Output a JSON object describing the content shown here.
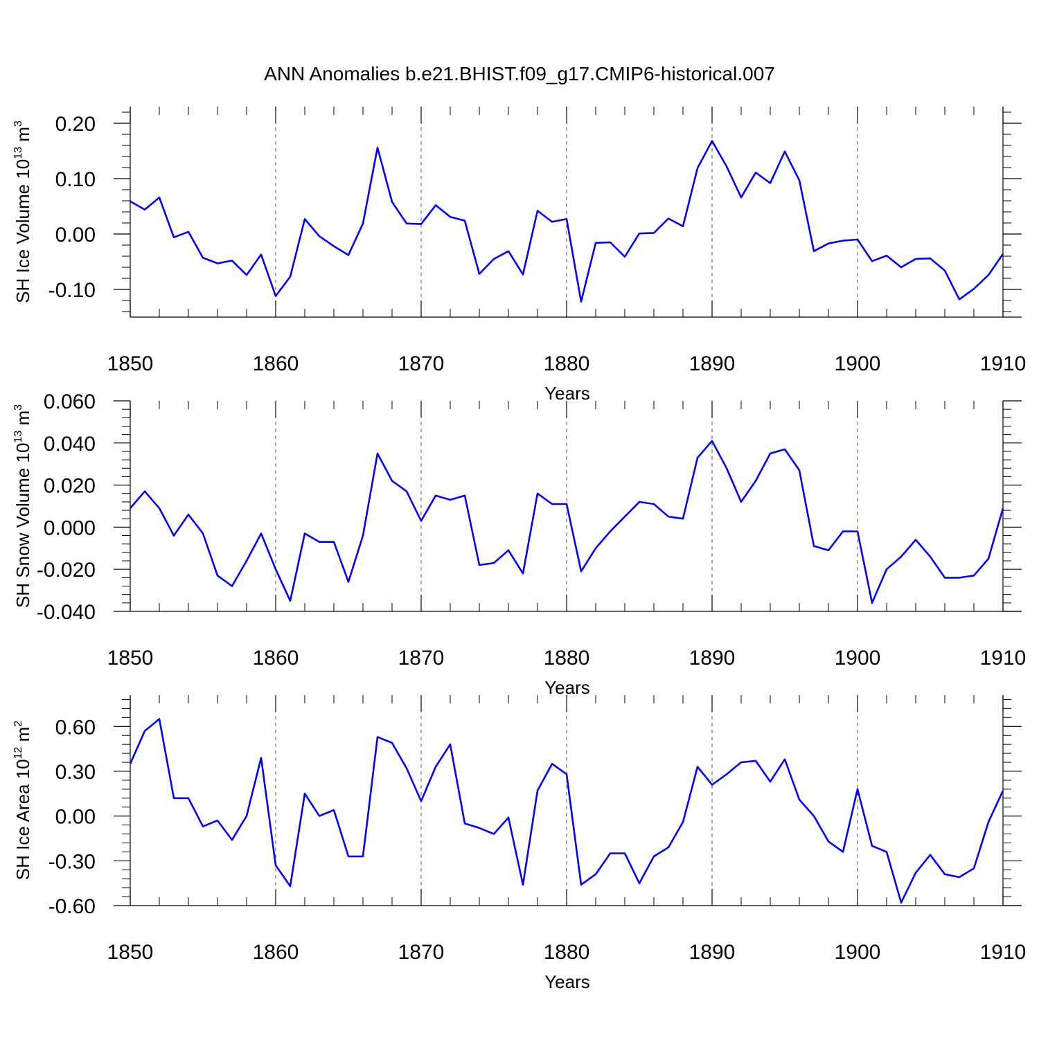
{
  "title": "ANN Anomalies b.e21.BHIST.f09_g17.CMIP6-historical.007",
  "line_color": "#0000ff",
  "chart_data": [
    {
      "type": "line",
      "name": "ice-volume-panel",
      "xlabel": "Years",
      "ylabel_main": "SH Ice Volume 10",
      "ylabel_exp": "13",
      "ylabel_unit": " m",
      "ylabel_unit_exp": "3",
      "xlim": [
        1850,
        1910
      ],
      "ylim": [
        -0.15,
        0.23
      ],
      "xticks": [
        "1850",
        "1860",
        "1870",
        "1880",
        "1890",
        "1900",
        "1910"
      ],
      "yticks": [
        {
          "v": -0.1,
          "label": "-0.10"
        },
        {
          "v": 0.0,
          "label": "0.00"
        },
        {
          "v": 0.1,
          "label": "0.10"
        },
        {
          "v": 0.2,
          "label": "0.20"
        }
      ],
      "x": [
        1850,
        1851,
        1852,
        1853,
        1854,
        1855,
        1856,
        1857,
        1858,
        1859,
        1860,
        1861,
        1862,
        1863,
        1864,
        1865,
        1866,
        1867,
        1868,
        1869,
        1870,
        1871,
        1872,
        1873,
        1874,
        1875,
        1876,
        1877,
        1878,
        1879,
        1880,
        1881,
        1882,
        1883,
        1884,
        1885,
        1886,
        1887,
        1888,
        1889,
        1890,
        1891,
        1892,
        1893,
        1894,
        1895,
        1896,
        1897,
        1898,
        1899,
        1900,
        1901,
        1902,
        1903,
        1904,
        1905,
        1906,
        1907,
        1908,
        1909,
        1910
      ],
      "values": [
        0.059,
        0.044,
        0.066,
        -0.006,
        0.004,
        -0.043,
        -0.053,
        -0.048,
        -0.074,
        -0.037,
        -0.112,
        -0.077,
        0.027,
        -0.004,
        -0.022,
        -0.038,
        0.019,
        0.156,
        0.058,
        0.019,
        0.018,
        0.052,
        0.031,
        0.024,
        -0.072,
        -0.045,
        -0.031,
        -0.073,
        0.042,
        0.022,
        0.027,
        -0.122,
        -0.016,
        -0.015,
        -0.041,
        0.001,
        0.002,
        0.028,
        0.014,
        0.119,
        0.168,
        0.122,
        0.066,
        0.111,
        0.092,
        0.149,
        0.097,
        -0.031,
        -0.017,
        -0.012,
        -0.01,
        -0.049,
        -0.039,
        -0.06,
        -0.045,
        -0.044,
        -0.066,
        -0.118,
        -0.099,
        -0.074,
        -0.036
      ]
    },
    {
      "type": "line",
      "name": "snow-volume-panel",
      "xlabel": "Years",
      "ylabel_main": "SH Snow Volume 10",
      "ylabel_exp": "13",
      "ylabel_unit": " m",
      "ylabel_unit_exp": "3",
      "xlim": [
        1850,
        1910
      ],
      "ylim": [
        -0.04,
        0.06
      ],
      "xticks": [
        "1850",
        "1860",
        "1870",
        "1880",
        "1890",
        "1900",
        "1910"
      ],
      "yticks": [
        {
          "v": -0.04,
          "label": "-0.040"
        },
        {
          "v": -0.02,
          "label": "-0.020"
        },
        {
          "v": 0.0,
          "label": "0.000"
        },
        {
          "v": 0.02,
          "label": "0.020"
        },
        {
          "v": 0.04,
          "label": "0.040"
        },
        {
          "v": 0.06,
          "label": "0.060"
        }
      ],
      "x": [
        1850,
        1851,
        1852,
        1853,
        1854,
        1855,
        1856,
        1857,
        1858,
        1859,
        1860,
        1861,
        1862,
        1863,
        1864,
        1865,
        1866,
        1867,
        1868,
        1869,
        1870,
        1871,
        1872,
        1873,
        1874,
        1875,
        1876,
        1877,
        1878,
        1879,
        1880,
        1881,
        1882,
        1883,
        1884,
        1885,
        1886,
        1887,
        1888,
        1889,
        1890,
        1891,
        1892,
        1893,
        1894,
        1895,
        1896,
        1897,
        1898,
        1899,
        1900,
        1901,
        1902,
        1903,
        1904,
        1905,
        1906,
        1907,
        1908,
        1909,
        1910
      ],
      "values": [
        0.009,
        0.017,
        0.009,
        -0.004,
        0.006,
        -0.003,
        -0.023,
        -0.028,
        -0.016,
        -0.003,
        -0.02,
        -0.035,
        -0.003,
        -0.007,
        -0.007,
        -0.026,
        -0.004,
        0.035,
        0.022,
        0.017,
        0.003,
        0.015,
        0.013,
        0.015,
        -0.018,
        -0.017,
        -0.011,
        -0.022,
        0.016,
        0.011,
        0.011,
        -0.021,
        -0.01,
        -0.002,
        0.005,
        0.012,
        0.011,
        0.005,
        0.004,
        0.033,
        0.041,
        0.028,
        0.012,
        0.022,
        0.035,
        0.037,
        0.027,
        -0.009,
        -0.011,
        -0.002,
        -0.002,
        -0.036,
        -0.02,
        -0.014,
        -0.006,
        -0.014,
        -0.024,
        -0.024,
        -0.023,
        -0.015,
        0.009
      ]
    },
    {
      "type": "line",
      "name": "ice-area-panel",
      "xlabel": "Years",
      "ylabel_main": "SH Ice Area 10",
      "ylabel_exp": "12",
      "ylabel_unit": " m",
      "ylabel_unit_exp": "2",
      "xlim": [
        1850,
        1910
      ],
      "ylim": [
        -0.6,
        0.81
      ],
      "xticks": [
        "1850",
        "1860",
        "1870",
        "1880",
        "1890",
        "1900",
        "1910"
      ],
      "yticks": [
        {
          "v": -0.6,
          "label": "-0.60"
        },
        {
          "v": -0.3,
          "label": "-0.30"
        },
        {
          "v": 0.0,
          "label": "0.00"
        },
        {
          "v": 0.3,
          "label": "0.30"
        },
        {
          "v": 0.6,
          "label": "0.60"
        }
      ],
      "x": [
        1850,
        1851,
        1852,
        1853,
        1854,
        1855,
        1856,
        1857,
        1858,
        1859,
        1860,
        1861,
        1862,
        1863,
        1864,
        1865,
        1866,
        1867,
        1868,
        1869,
        1870,
        1871,
        1872,
        1873,
        1874,
        1875,
        1876,
        1877,
        1878,
        1879,
        1880,
        1881,
        1882,
        1883,
        1884,
        1885,
        1886,
        1887,
        1888,
        1889,
        1890,
        1891,
        1892,
        1893,
        1894,
        1895,
        1896,
        1897,
        1898,
        1899,
        1900,
        1901,
        1902,
        1903,
        1904,
        1905,
        1906,
        1907,
        1908,
        1909,
        1910
      ],
      "values": [
        0.35,
        0.57,
        0.65,
        0.12,
        0.12,
        -0.07,
        -0.03,
        -0.16,
        0.0,
        0.39,
        -0.33,
        -0.47,
        0.15,
        0.0,
        0.04,
        -0.27,
        -0.27,
        0.53,
        0.49,
        0.32,
        0.1,
        0.33,
        0.48,
        -0.05,
        -0.08,
        -0.12,
        -0.01,
        -0.46,
        0.17,
        0.35,
        0.28,
        -0.46,
        -0.39,
        -0.25,
        -0.25,
        -0.45,
        -0.27,
        -0.21,
        -0.04,
        0.33,
        0.21,
        0.28,
        0.36,
        0.37,
        0.23,
        0.38,
        0.11,
        0.0,
        -0.17,
        -0.24,
        0.18,
        -0.2,
        -0.24,
        -0.58,
        -0.38,
        -0.26,
        -0.39,
        -0.41,
        -0.35,
        -0.04,
        0.17
      ]
    }
  ]
}
